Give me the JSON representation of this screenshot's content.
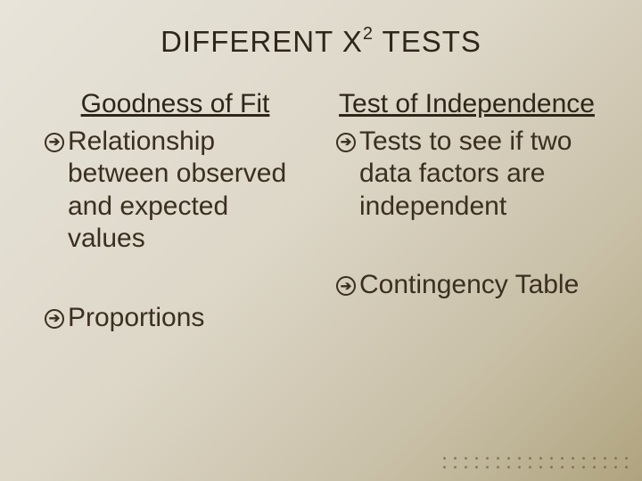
{
  "colors": {
    "text": "#3a2f20",
    "bg_gradient_start": "#e8e4da",
    "bg_gradient_end": "#b0a47f",
    "dot": "#6b5c3d"
  },
  "typography": {
    "title_fontsize": 33,
    "heading_fontsize": 30,
    "body_fontsize": 30,
    "font_family": "Arial"
  },
  "title": {
    "prefix": "DIFFERENT X",
    "superscript": "2",
    "suffix": " TESTS"
  },
  "bullet_glyph": "➔",
  "left": {
    "heading": "Goodness of Fit",
    "items": [
      "Relationship between observed and expected values",
      "Proportions"
    ]
  },
  "right": {
    "heading": "Test of Independence",
    "items": [
      "Tests to see if two data factors are independent",
      "Contingency Table"
    ]
  },
  "decor": {
    "dot_rows": 2,
    "dots_per_row": 18
  }
}
